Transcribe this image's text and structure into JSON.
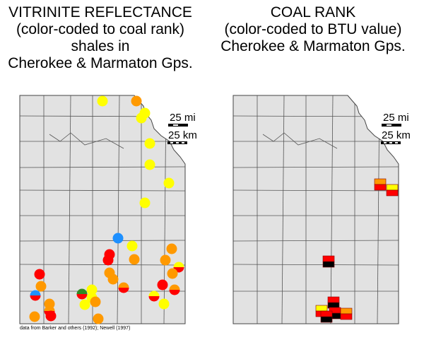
{
  "left_panel": {
    "title_lines": [
      "VITRINITE REFLECTANCE",
      "(color-coded to coal rank)",
      "shales in",
      "Cherokee & Marmaton Gps."
    ],
    "scale": {
      "miles": "25 mi",
      "kilometers": "25 km"
    },
    "credit": "data from Barker and others (1992); Newell (1997)"
  },
  "right_panel": {
    "title_lines": [
      "COAL RANK",
      "(color-coded to BTU value)",
      "Cherokee & Marmaton Gps."
    ],
    "scale": {
      "miles": "25 mi",
      "kilometers": "25 km"
    }
  }
}
